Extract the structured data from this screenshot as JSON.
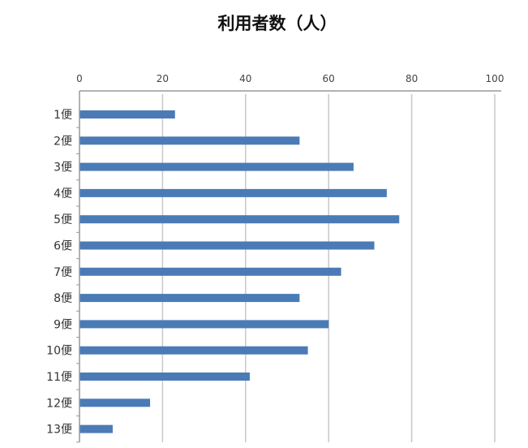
{
  "chart_data": {
    "type": "bar",
    "orientation": "horizontal",
    "title": "利用者数（人）",
    "categories": [
      "1便",
      "2便",
      "3便",
      "4便",
      "5便",
      "6便",
      "7便",
      "8便",
      "9便",
      "10便",
      "11便",
      "12便",
      "13便"
    ],
    "values": [
      23,
      53,
      66,
      74,
      77,
      71,
      63,
      53,
      60,
      55,
      41,
      17,
      8
    ],
    "x_ticks": [
      "0",
      "20",
      "40",
      "60",
      "80",
      "100"
    ],
    "xlim": [
      0,
      100
    ],
    "xlabel": "",
    "ylabel": "",
    "grid": true,
    "bar_color": "#4a7bb7",
    "grid_color": "#c8c8c8",
    "axis_color": "#999999"
  }
}
